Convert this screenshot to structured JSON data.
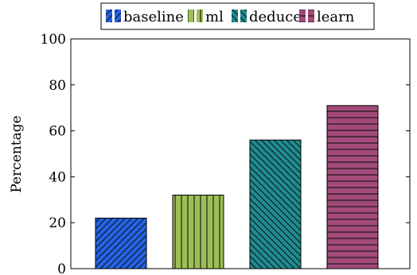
{
  "chart_data": {
    "type": "bar",
    "title": "",
    "xlabel": "",
    "ylabel": "Percentage",
    "ylim": [
      0,
      100
    ],
    "yticks": [
      0,
      20,
      40,
      60,
      80,
      100
    ],
    "grid": false,
    "legend_position": "top-center",
    "series": [
      {
        "name": "baseline",
        "values": [
          22
        ],
        "color": "#2563e8",
        "pattern": "diagonal-forward"
      },
      {
        "name": "ml",
        "values": [
          32
        ],
        "color": "#9cbf55",
        "pattern": "vertical"
      },
      {
        "name": "deduce",
        "values": [
          56
        ],
        "color": "#1e8c92",
        "pattern": "diagonal-backward"
      },
      {
        "name": "learn",
        "values": [
          71
        ],
        "color": "#a24a7a",
        "pattern": "horizontal"
      }
    ]
  }
}
